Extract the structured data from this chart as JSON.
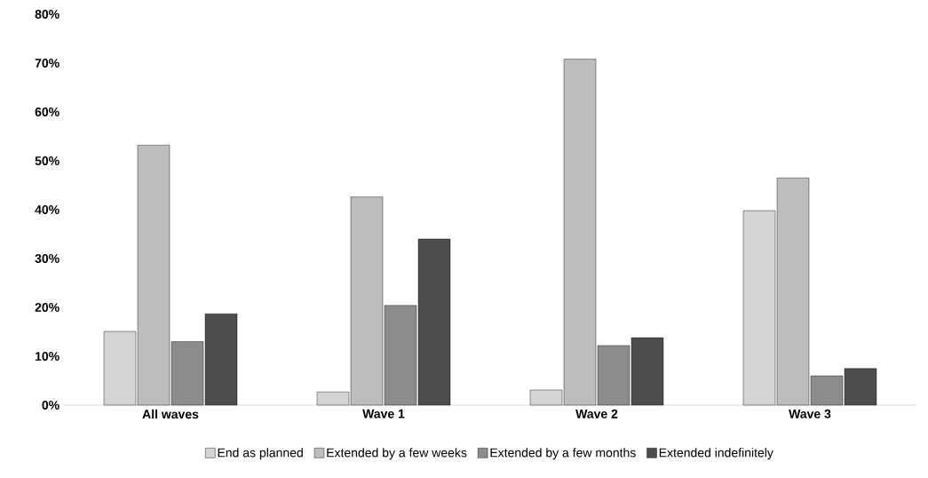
{
  "chart_data": {
    "type": "bar",
    "categories": [
      "All waves",
      "Wave 1",
      "Wave 2",
      "Wave 3"
    ],
    "series": [
      {
        "name": "End as planned",
        "color": "#d4d4d4",
        "values": [
          15.1,
          2.7,
          3.1,
          39.8
        ]
      },
      {
        "name": "Extended by a few weeks",
        "color": "#bdbdbd",
        "values": [
          53.2,
          42.6,
          70.8,
          46.5
        ]
      },
      {
        "name": "Extended by a few months",
        "color": "#8c8c8c",
        "values": [
          13.0,
          20.4,
          12.2,
          6.0
        ]
      },
      {
        "name": "Extended indefinitely",
        "color": "#4d4d4d",
        "values": [
          18.7,
          34.0,
          13.8,
          7.5
        ]
      }
    ],
    "ylim": [
      0,
      80
    ],
    "yticks": [
      {
        "value": 0,
        "label": "0%"
      },
      {
        "value": 10,
        "label": "10%"
      },
      {
        "value": 20,
        "label": "20%"
      },
      {
        "value": 30,
        "label": "30%"
      },
      {
        "value": 40,
        "label": "40%"
      },
      {
        "value": 50,
        "label": "50%"
      },
      {
        "value": 60,
        "label": "60%"
      },
      {
        "value": 70,
        "label": "70%"
      },
      {
        "value": 80,
        "label": "80%"
      }
    ],
    "grid": false,
    "legend": "bottom"
  }
}
